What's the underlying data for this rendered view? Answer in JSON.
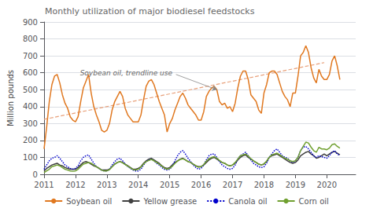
{
  "chart_data": {
    "type": "line",
    "title": "Monthly utilization of major biodiesel feedstocks",
    "ylabel": "Million pounds",
    "xlim": [
      2011.0,
      2020.92
    ],
    "xticks": [
      2011,
      2012,
      2013,
      2014,
      2015,
      2016,
      2017,
      2018,
      2019,
      2020
    ],
    "ylim": [
      0,
      900
    ],
    "yticks": [
      0,
      100,
      200,
      300,
      400,
      500,
      600,
      700,
      800,
      900
    ],
    "grid": true,
    "legend": "bottom",
    "x": [
      2011,
      2011.0833333333333,
      2011.1666666666667,
      2011.25,
      2011.3333333333333,
      2011.4166666666667,
      2011.5,
      2011.5833333333333,
      2011.6666666666667,
      2011.75,
      2011.8333333333333,
      2011.9166666666667,
      2012,
      2012.0833333333333,
      2012.1666666666667,
      2012.25,
      2012.3333333333333,
      2012.4166666666667,
      2012.5,
      2012.5833333333333,
      2012.6666666666667,
      2012.75,
      2012.8333333333333,
      2012.9166666666667,
      2013,
      2013.0833333333333,
      2013.1666666666667,
      2013.25,
      2013.3333333333333,
      2013.4166666666667,
      2013.5,
      2013.5833333333333,
      2013.6666666666667,
      2013.75,
      2013.8333333333333,
      2013.9166666666667,
      2014,
      2014.0833333333333,
      2014.1666666666667,
      2014.25,
      2014.3333333333333,
      2014.4166666666667,
      2014.5,
      2014.5833333333333,
      2014.6666666666667,
      2014.75,
      2014.8333333333333,
      2014.9166666666667,
      2015,
      2015.0833333333333,
      2015.1666666666667,
      2015.25,
      2015.3333333333333,
      2015.4166666666667,
      2015.5,
      2015.5833333333333,
      2015.6666666666667,
      2015.75,
      2015.8333333333333,
      2015.9166666666667,
      2016,
      2016.0833333333333,
      2016.1666666666667,
      2016.25,
      2016.3333333333333,
      2016.4166666666667,
      2016.5,
      2016.5833333333333,
      2016.6666666666667,
      2016.75,
      2016.8333333333333,
      2016.9166666666667,
      2017,
      2017.0833333333333,
      2017.1666666666667,
      2017.25,
      2017.3333333333333,
      2017.4166666666667,
      2017.5,
      2017.5833333333333,
      2017.6666666666667,
      2017.75,
      2017.8333333333333,
      2017.9166666666667,
      2018,
      2018.0833333333333,
      2018.1666666666667,
      2018.25,
      2018.3333333333333,
      2018.4166666666667,
      2018.5,
      2018.5833333333333,
      2018.6666666666667,
      2018.75,
      2018.8333333333333,
      2018.9166666666667,
      2019,
      2019.0833333333333,
      2019.1666666666667,
      2019.25,
      2019.3333333333333,
      2019.4166666666667,
      2019.5,
      2019.5833333333333,
      2019.6666666666667,
      2019.75,
      2019.8333333333333,
      2019.9166666666667,
      2020,
      2020.0833333333333,
      2020.1666666666667,
      2020.25,
      2020.3333333333333,
      2020.4166666666667
    ],
    "series": [
      {
        "x": [
          2011.0,
          2019.92
        ],
        "values": [
          325,
          660
        ],
        "color": "#e8a07a",
        "line_style": "dashed"
      },
      {
        "name": "Soybean oil",
        "color": "#e07820",
        "line_style": "solid",
        "values": [
          150,
          280,
          430,
          530,
          580,
          590,
          540,
          470,
          420,
          390,
          340,
          320,
          310,
          340,
          430,
          510,
          550,
          590,
          480,
          400,
          350,
          310,
          260,
          250,
          260,
          300,
          380,
          430,
          460,
          490,
          460,
          390,
          350,
          330,
          310,
          310,
          310,
          350,
          440,
          520,
          550,
          560,
          530,
          480,
          430,
          390,
          350,
          250,
          300,
          330,
          380,
          420,
          460,
          480,
          450,
          410,
          390,
          370,
          350,
          320,
          320,
          370,
          460,
          490,
          510,
          520,
          500,
          430,
          410,
          420,
          390,
          400,
          370,
          420,
          510,
          580,
          610,
          610,
          560,
          470,
          450,
          430,
          380,
          360,
          480,
          530,
          600,
          610,
          610,
          590,
          540,
          490,
          460,
          440,
          400,
          480,
          480,
          580,
          700,
          720,
          760,
          720,
          630,
          570,
          540,
          620,
          580,
          560,
          560,
          590,
          670,
          700,
          640,
          560
        ]
      },
      {
        "name": "Yellow grease",
        "color": "#404040",
        "line_style": "solid",
        "values": [
          20,
          35,
          45,
          55,
          60,
          65,
          55,
          50,
          40,
          35,
          30,
          30,
          30,
          40,
          55,
          70,
          75,
          70,
          60,
          50,
          45,
          35,
          25,
          25,
          25,
          30,
          45,
          60,
          70,
          75,
          70,
          60,
          50,
          40,
          30,
          30,
          35,
          45,
          65,
          80,
          90,
          95,
          85,
          75,
          65,
          50,
          40,
          35,
          40,
          55,
          70,
          80,
          90,
          95,
          85,
          75,
          70,
          60,
          50,
          45,
          45,
          55,
          70,
          85,
          95,
          100,
          90,
          80,
          70,
          65,
          55,
          50,
          55,
          65,
          85,
          100,
          110,
          115,
          100,
          90,
          80,
          70,
          60,
          55,
          60,
          75,
          100,
          110,
          115,
          120,
          110,
          100,
          90,
          80,
          70,
          65,
          70,
          85,
          110,
          120,
          130,
          135,
          120,
          110,
          95,
          100,
          110,
          120,
          110,
          120,
          130,
          135,
          125,
          115
        ]
      },
      {
        "name": "Canola oil",
        "color": "#0000cc",
        "line_style": "dotted",
        "values": [
          30,
          55,
          80,
          95,
          100,
          110,
          95,
          75,
          55,
          45,
          35,
          30,
          35,
          50,
          80,
          100,
          110,
          115,
          90,
          65,
          45,
          35,
          25,
          20,
          20,
          30,
          55,
          75,
          90,
          95,
          80,
          60,
          45,
          35,
          25,
          20,
          20,
          30,
          55,
          75,
          85,
          90,
          80,
          65,
          55,
          40,
          30,
          25,
          30,
          50,
          80,
          110,
          130,
          140,
          120,
          95,
          75,
          55,
          40,
          30,
          35,
          55,
          85,
          110,
          120,
          120,
          100,
          75,
          55,
          45,
          35,
          30,
          35,
          55,
          90,
          110,
          120,
          130,
          110,
          85,
          65,
          55,
          45,
          40,
          45,
          65,
          100,
          120,
          140,
          150,
          130,
          110,
          100,
          95,
          80,
          70,
          80,
          100,
          140,
          160,
          165,
          150,
          130,
          110,
          100,
          110,
          105,
          100,
          95,
          110,
          130,
          140,
          120,
          110
        ]
      },
      {
        "name": "Corn oil",
        "color": "#70a030",
        "line_style": "solid",
        "values": [
          10,
          20,
          30,
          45,
          50,
          55,
          50,
          40,
          30,
          25,
          20,
          18,
          20,
          30,
          45,
          60,
          65,
          70,
          65,
          55,
          45,
          35,
          25,
          20,
          20,
          28,
          45,
          60,
          70,
          75,
          68,
          58,
          48,
          38,
          28,
          25,
          30,
          42,
          60,
          75,
          82,
          88,
          80,
          70,
          60,
          48,
          36,
          30,
          35,
          48,
          65,
          78,
          88,
          92,
          85,
          75,
          70,
          60,
          50,
          42,
          45,
          58,
          78,
          92,
          100,
          105,
          95,
          82,
          70,
          65,
          55,
          50,
          55,
          70,
          90,
          110,
          115,
          120,
          108,
          92,
          80,
          70,
          60,
          55,
          62,
          78,
          100,
          115,
          120,
          125,
          115,
          105,
          95,
          90,
          80,
          75,
          80,
          100,
          140,
          165,
          190,
          185,
          160,
          140,
          130,
          160,
          150,
          150,
          145,
          155,
          175,
          180,
          165,
          155
        ]
      }
    ],
    "annotations": [
      {
        "text": "Soybean oil, trendline use",
        "xy": [
          2016.5,
          500
        ],
        "xytext": [
          2015.2,
          590
        ]
      }
    ]
  }
}
